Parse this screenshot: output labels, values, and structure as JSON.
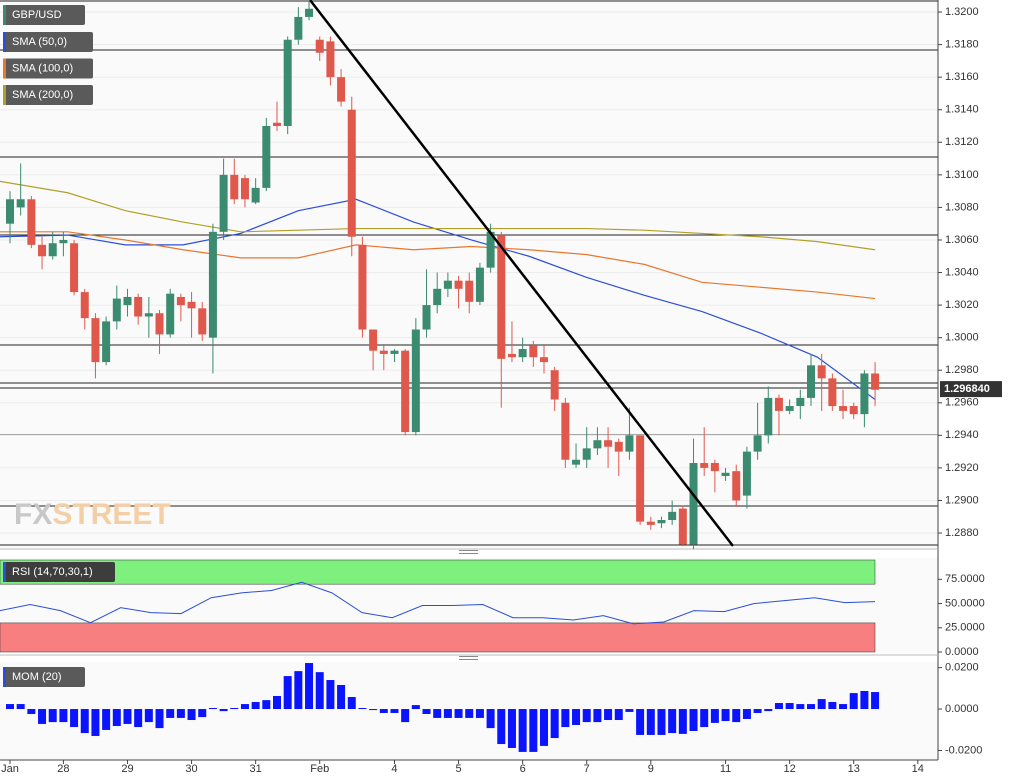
{
  "chart_data": [
    {
      "type": "candlestick",
      "title": "GBP/USD",
      "up_color": "#3a8b6f",
      "down_color": "#e0584c",
      "watermark": {
        "prefix": "FX",
        "suffix": "STREET"
      },
      "last_price": {
        "value": 1.29684,
        "label": "1.296840"
      },
      "categories": [
        "Jan",
        null,
        null,
        null,
        null,
        "28",
        null,
        null,
        null,
        null,
        null,
        "29",
        null,
        null,
        null,
        null,
        null,
        "30",
        null,
        null,
        null,
        null,
        null,
        "31",
        null,
        null,
        null,
        null,
        null,
        "Feb",
        null,
        null,
        null,
        null,
        null,
        null,
        "4",
        null,
        null,
        null,
        null,
        null,
        "5",
        null,
        null,
        null,
        null,
        null,
        "6",
        null,
        null,
        null,
        null,
        null,
        "7",
        null,
        null,
        null,
        null,
        null,
        "9",
        null,
        null,
        null,
        null,
        null,
        null,
        "11",
        null,
        null,
        null,
        null,
        null,
        "12",
        null,
        null,
        null,
        null,
        null,
        "13",
        null,
        null,
        null,
        null,
        null,
        "14"
      ],
      "open": [
        1.307,
        1.308,
        1.3085,
        1.3057,
        1.305,
        1.3058,
        1.3058,
        1.3028,
        1.3012,
        1.2985,
        1.301,
        1.302,
        1.3025,
        1.3013,
        1.3015,
        1.3002,
        1.3025,
        1.3022,
        1.3018,
        1.3,
        1.3065,
        1.31,
        1.3098,
        1.3083,
        1.3092,
        1.3132,
        1.313,
        1.3183,
        1.3197,
        1.3183,
        1.3182,
        1.316,
        1.314,
        1.3057,
        1.3005,
        1.2992,
        1.299,
        1.2992,
        1.2942,
        1.3005,
        1.302,
        1.303,
        1.3035,
        1.3035,
        1.3022,
        1.3043,
        1.3063,
        1.299,
        1.2988,
        1.2995,
        1.2988,
        1.298,
        1.296,
        1.2922,
        1.2925,
        1.2932,
        1.2937,
        1.2936,
        1.293,
        1.294,
        1.2887,
        1.2886,
        1.2888,
        1.2895,
        1.2873,
        1.2923,
        1.2923,
        1.2915,
        1.2918,
        1.2903,
        1.293,
        1.294,
        1.2963,
        1.2955,
        1.2958,
        1.2963,
        1.2983,
        1.2975,
        1.2958,
        1.2958,
        1.2953,
        1.2978,
        null,
        null,
        null,
        null
      ],
      "high": [
        1.309,
        1.3107,
        1.3087,
        1.3062,
        1.3065,
        1.3065,
        1.306,
        1.303,
        1.3015,
        1.3013,
        1.3032,
        1.303,
        1.3027,
        1.3025,
        1.3017,
        1.303,
        1.3027,
        1.3028,
        1.3022,
        1.307,
        1.311,
        1.311,
        1.31,
        1.3098,
        1.3135,
        1.3145,
        1.3185,
        1.3203,
        1.3207,
        1.3185,
        1.3185,
        1.3165,
        1.3148,
        1.3062,
        1.3005,
        1.2995,
        1.2993,
        1.2993,
        1.3012,
        1.3042,
        1.304,
        1.304,
        1.3038,
        1.304,
        1.3046,
        1.307,
        1.3065,
        1.301,
        1.3,
        1.2998,
        1.2995,
        1.2982,
        1.2963,
        1.2935,
        1.2945,
        1.2945,
        1.2945,
        1.2938,
        1.2957,
        1.294,
        1.289,
        1.289,
        1.29,
        1.2897,
        1.2938,
        1.2945,
        1.2925,
        1.292,
        1.2922,
        1.2933,
        1.296,
        1.297,
        1.2965,
        1.2962,
        1.2968,
        1.299,
        1.299,
        1.2978,
        1.2968,
        1.296,
        1.298,
        1.2985,
        null,
        null,
        null,
        null
      ],
      "low": [
        1.3058,
        1.3075,
        1.3055,
        1.3042,
        1.3048,
        1.305,
        1.3026,
        1.3005,
        1.2975,
        1.2983,
        1.3005,
        1.3013,
        1.3008,
        1.3,
        1.299,
        1.3,
        1.301,
        1.3,
        1.2998,
        1.2978,
        1.306,
        1.3082,
        1.308,
        1.3082,
        1.309,
        1.3127,
        1.3125,
        1.318,
        1.3195,
        1.317,
        1.3155,
        1.3142,
        1.305,
        1.3,
        1.298,
        1.298,
        1.2985,
        1.294,
        1.294,
        1.3,
        1.3015,
        1.3025,
        1.3018,
        1.3015,
        1.302,
        1.304,
        1.2957,
        1.2985,
        1.2985,
        1.2982,
        1.2978,
        1.2955,
        1.292,
        1.292,
        1.292,
        1.2928,
        1.292,
        1.2915,
        1.2925,
        1.2885,
        1.2882,
        1.2883,
        1.2885,
        1.2872,
        1.287,
        1.2915,
        1.2905,
        1.2912,
        1.2896,
        1.2895,
        1.2925,
        1.2935,
        1.294,
        1.2953,
        1.295,
        1.2958,
        1.2955,
        1.2955,
        1.295,
        1.295,
        1.2945,
        1.2958,
        null,
        null,
        null,
        null
      ],
      "close": [
        1.3085,
        1.3085,
        1.3057,
        1.305,
        1.3058,
        1.306,
        1.3028,
        1.3012,
        1.2985,
        1.301,
        1.3024,
        1.3025,
        1.3013,
        1.3015,
        1.3002,
        1.3027,
        1.302,
        1.3018,
        1.3002,
        1.3065,
        1.31,
        1.3085,
        1.3085,
        1.3092,
        1.313,
        1.313,
        1.3183,
        1.3197,
        1.3202,
        1.3175,
        1.316,
        1.3145,
        1.3062,
        1.3005,
        1.2992,
        1.299,
        1.2992,
        1.2942,
        1.3005,
        1.302,
        1.303,
        1.3035,
        1.303,
        1.3022,
        1.3043,
        1.3065,
        1.2987,
        1.2988,
        1.2993,
        1.2988,
        1.2985,
        1.2962,
        1.2925,
        1.2925,
        1.2932,
        1.2937,
        1.2933,
        1.293,
        1.294,
        1.2887,
        1.2885,
        1.2888,
        1.2893,
        1.2873,
        1.2923,
        1.292,
        1.2918,
        1.2917,
        1.29,
        1.293,
        1.294,
        1.2963,
        1.2955,
        1.2958,
        1.2963,
        1.2983,
        1.2975,
        1.2958,
        1.2955,
        1.2953,
        1.2978,
        1.2968,
        null,
        null,
        null,
        null
      ],
      "lines": [
        {
          "name": "SMA (50,0)",
          "color": "#2a4fd8",
          "values": [
            1.3062,
            1.3063,
            1.3057,
            1.3057,
            1.3064,
            1.3078,
            1.3085,
            1.3071,
            1.306,
            1.305,
            1.3037,
            1.3026,
            1.3016,
            1.3003,
            1.2988,
            1.2962
          ]
        },
        {
          "name": "SMA (100,0)",
          "color": "#e8772e",
          "values": [
            1.3065,
            1.3065,
            1.306,
            1.3054,
            1.3049,
            1.3049,
            1.3057,
            1.3054,
            1.3056,
            1.3054,
            1.3051,
            1.3045,
            1.3034,
            1.3031,
            1.3028,
            1.3024
          ]
        },
        {
          "name": "SMA (200,0)",
          "color": "#b3a02a",
          "values": [
            1.3096,
            1.3089,
            1.3078,
            1.3071,
            1.3065,
            1.3066,
            1.3067,
            1.3067,
            1.3067,
            1.3067,
            1.3067,
            1.3066,
            1.3064,
            1.3062,
            1.3059,
            1.3054
          ]
        }
      ],
      "ylim": [
        1.28708,
        1.32074
      ],
      "yticks": [
        {
          "value": 1.288,
          "label": "1.2880"
        },
        {
          "value": 1.29,
          "label": "1.2900"
        },
        {
          "value": 1.292,
          "label": "1.2920"
        },
        {
          "value": 1.294,
          "label": "1.2940"
        },
        {
          "value": 1.296,
          "label": "1.2960"
        },
        {
          "value": 1.298,
          "label": "1.2980"
        },
        {
          "value": 1.3,
          "label": "1.3000"
        },
        {
          "value": 1.302,
          "label": "1.3020"
        },
        {
          "value": 1.304,
          "label": "1.3040"
        },
        {
          "value": 1.306,
          "label": "1.3060"
        },
        {
          "value": 1.308,
          "label": "1.3080"
        },
        {
          "value": 1.31,
          "label": "1.3100"
        },
        {
          "value": 1.312,
          "label": "1.3120"
        },
        {
          "value": 1.314,
          "label": "1.3140"
        },
        {
          "value": 1.316,
          "label": "1.3160"
        },
        {
          "value": 1.318,
          "label": "1.3180"
        },
        {
          "value": 1.32,
          "label": "1.3200"
        }
      ],
      "grid": true
    },
    {
      "type": "line",
      "title": "RSI (14,70,30,1)",
      "color": "#2a4fd8",
      "overbought": 70,
      "oversold": 30,
      "overbought_color": "#7df07d",
      "oversold_color": "#f77f7f",
      "values": [
        42.7,
        49,
        42.7,
        30.2,
        45.8,
        40.6,
        39.6,
        56,
        61,
        63.5,
        72,
        61,
        40.6,
        35.4,
        48,
        48,
        49,
        35.4,
        35.4,
        33,
        37.5,
        29,
        31,
        42.7,
        41.7,
        50,
        53,
        56,
        51,
        52
      ],
      "ylim": [
        0,
        97
      ],
      "yticks": [
        {
          "value": 0,
          "label": "0.0000"
        },
        {
          "value": 25,
          "label": "25.0000"
        },
        {
          "value": 50,
          "label": "50.0000"
        },
        {
          "value": 75,
          "label": "75.0000"
        }
      ]
    },
    {
      "type": "bar",
      "title": "MOM (20)",
      "color": "#0a14ff",
      "values": [
        0.0024,
        0.0024,
        -0.0024,
        -0.0072,
        -0.0063,
        -0.0063,
        -0.0087,
        -0.0116,
        -0.013,
        -0.0101,
        -0.0082,
        -0.0072,
        -0.0087,
        -0.0063,
        -0.0092,
        -0.0043,
        -0.0043,
        -0.0053,
        -0.0039,
        0.0005,
        -0.001,
        0.0005,
        0.0024,
        0.0034,
        0.0043,
        0.0063,
        0.0159,
        0.0183,
        0.0222,
        0.0178,
        0.014,
        0.0116,
        0.0058,
        0.0005,
        -0.0005,
        -0.0019,
        -0.0019,
        -0.0063,
        0.0019,
        -0.0024,
        -0.0043,
        -0.0043,
        -0.0043,
        -0.0043,
        -0.0043,
        -0.0092,
        -0.0169,
        -0.0188,
        -0.0207,
        -0.0207,
        -0.0178,
        -0.014,
        -0.0087,
        -0.0077,
        -0.0063,
        -0.0063,
        -0.0053,
        -0.0053,
        -0.0014,
        -0.0125,
        -0.0125,
        -0.0125,
        -0.0116,
        -0.012,
        -0.0106,
        -0.0087,
        -0.0067,
        -0.0058,
        -0.0063,
        -0.0048,
        -0.0019,
        -0.001,
        0.0029,
        0.0029,
        0.0024,
        0.0024,
        0.0048,
        0.0034,
        0.0024,
        0.0077,
        0.0087,
        0.0082
      ],
      "ylim": [
        -0.0246,
        0.0227
      ],
      "yticks": [
        {
          "value": -0.02,
          "label": "-0.0200"
        },
        {
          "value": 0,
          "label": "0.0000"
        },
        {
          "value": 0.02,
          "label": "0.0200"
        }
      ]
    }
  ]
}
